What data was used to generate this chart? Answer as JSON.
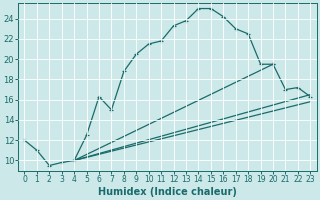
{
  "xlabel": "Humidex (Indice chaleur)",
  "bg_color": "#cce8e8",
  "line_color": "#1a6b6b",
  "xlim": [
    -0.5,
    23.5
  ],
  "ylim": [
    9.0,
    25.5
  ],
  "xticks": [
    0,
    1,
    2,
    3,
    4,
    5,
    6,
    7,
    8,
    9,
    10,
    11,
    12,
    13,
    14,
    15,
    16,
    17,
    18,
    19,
    20,
    21,
    22,
    23
  ],
  "yticks": [
    10,
    12,
    14,
    16,
    18,
    20,
    22,
    24
  ],
  "main_x": [
    0,
    1,
    2,
    3,
    4,
    5,
    6,
    7,
    8,
    9,
    10,
    11,
    12,
    13,
    14,
    15,
    16,
    17,
    18,
    19,
    20
  ],
  "main_y": [
    12.0,
    11.0,
    9.5,
    9.8,
    10.0,
    12.5,
    16.3,
    15.0,
    18.8,
    20.5,
    21.5,
    21.8,
    23.3,
    23.8,
    25.0,
    25.0,
    24.2,
    23.0,
    22.5,
    19.5,
    19.5
  ],
  "curve2_x": [
    4,
    20,
    21,
    22,
    23
  ],
  "curve2_y": [
    10.0,
    19.5,
    17.0,
    17.2,
    16.3
  ],
  "line3_x": [
    4,
    23
  ],
  "line3_y": [
    10.0,
    16.5
  ],
  "line4_x": [
    4,
    23
  ],
  "line4_y": [
    10.0,
    15.8
  ],
  "tick_fontsize": 5.5,
  "xlabel_fontsize": 7.0,
  "linewidth": 0.9,
  "marker_size": 3.5
}
